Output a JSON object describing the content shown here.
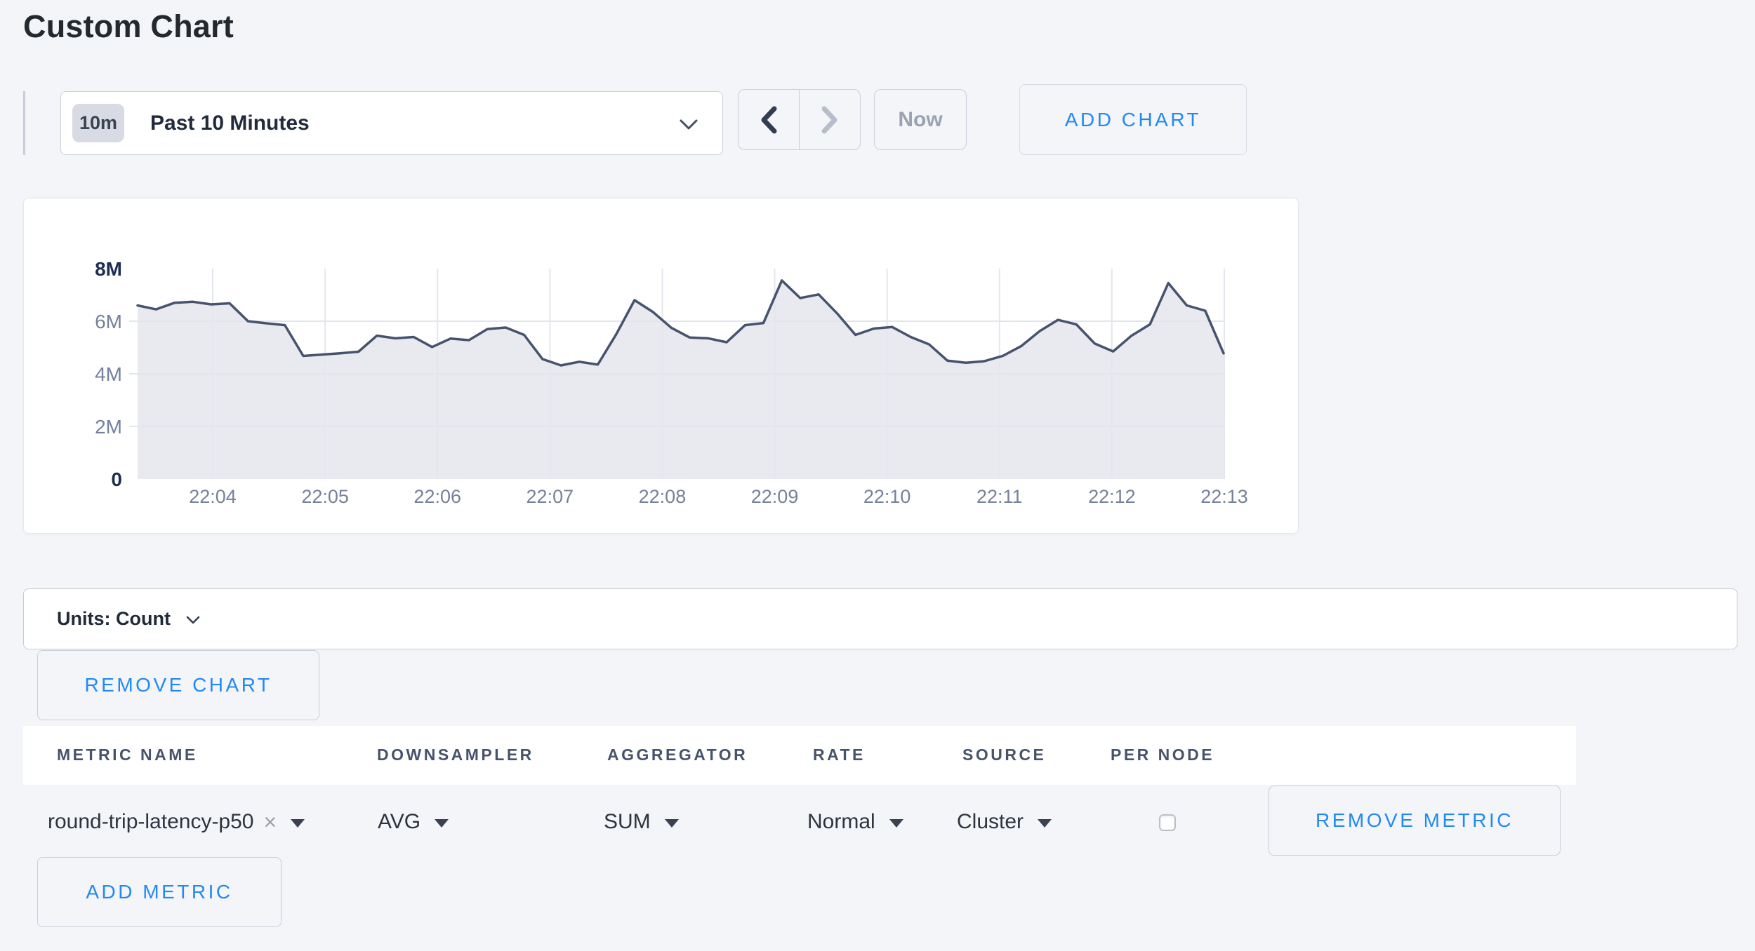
{
  "page": {
    "title": "Custom Chart",
    "background_color": "#f4f5f8",
    "accent_blue": "#2289f4"
  },
  "toolbar": {
    "time_window_badge": "10m",
    "time_window_label": "Past 10 Minutes",
    "now_label": "Now",
    "add_chart_label": "ADD CHART",
    "icons": {
      "dropdown": "chevron-down-icon",
      "previous": "chevron-left-icon",
      "next": "chevron-right-icon"
    },
    "next_button_disabled": true
  },
  "chart_data": {
    "type": "area",
    "title": "",
    "xlabel": "",
    "ylabel": "",
    "unit": "Count (millions)",
    "ylim": [
      0,
      8
    ],
    "grid": true,
    "legend": "none",
    "line_color": "#46536d",
    "fill_color": "#e9eaef",
    "y_ticks": [
      {
        "label": "0",
        "value": 0,
        "strong": true
      },
      {
        "label": "2M",
        "value": 2,
        "strong": false
      },
      {
        "label": "4M",
        "value": 4,
        "strong": false
      },
      {
        "label": "6M",
        "value": 6,
        "strong": false
      },
      {
        "label": "8M",
        "value": 8,
        "strong": true
      }
    ],
    "x_ticks": [
      "22:04",
      "22:05",
      "22:06",
      "22:07",
      "22:08",
      "22:09",
      "22:10",
      "22:11",
      "22:12",
      "22:13"
    ],
    "x_start": "22:03:20",
    "x_end": "22:13:00",
    "sample_interval_seconds": 10,
    "values_millions": [
      6.6,
      6.45,
      6.7,
      6.74,
      6.64,
      6.68,
      6.0,
      5.92,
      5.85,
      4.68,
      4.73,
      4.78,
      4.84,
      5.45,
      5.35,
      5.4,
      5.02,
      5.34,
      5.28,
      5.7,
      5.76,
      5.48,
      4.56,
      4.32,
      4.46,
      4.35,
      5.5,
      6.8,
      6.35,
      5.75,
      5.38,
      5.35,
      5.2,
      5.85,
      5.93,
      7.55,
      6.88,
      7.02,
      6.3,
      5.48,
      5.72,
      5.78,
      5.4,
      5.12,
      4.5,
      4.42,
      4.48,
      4.68,
      5.05,
      5.62,
      6.05,
      5.88,
      5.15,
      4.85,
      5.45,
      5.88,
      7.45,
      6.6,
      6.4,
      4.78
    ]
  },
  "units_bar": {
    "label": "Units: Count"
  },
  "labels": {
    "remove_chart": "REMOVE CHART"
  },
  "metrics_table": {
    "columns": [
      "METRIC NAME",
      "DOWNSAMPLER",
      "AGGREGATOR",
      "RATE",
      "SOURCE",
      "PER NODE"
    ],
    "rows": [
      {
        "metric_name": "round-trip-latency-p50",
        "clear_glyph": "×",
        "downsampler": "AVG",
        "aggregator": "SUM",
        "rate": "Normal",
        "source": "Cluster",
        "per_node_checked": false
      }
    ],
    "remove_metric_label": "REMOVE METRIC",
    "add_metric_label": "ADD METRIC"
  }
}
